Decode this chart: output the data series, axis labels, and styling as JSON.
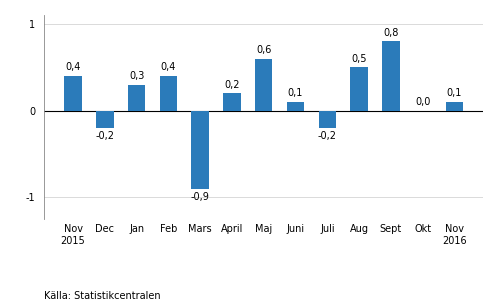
{
  "categories": [
    "Nov\n2015",
    "Dec",
    "Jan",
    "Feb",
    "Mars",
    "April",
    "Maj",
    "Juni",
    "Juli",
    "Aug",
    "Sept",
    "Okt",
    "Nov\n2016"
  ],
  "values": [
    0.4,
    -0.2,
    0.3,
    0.4,
    -0.9,
    0.2,
    0.6,
    0.1,
    -0.2,
    0.5,
    0.8,
    0.0,
    0.1
  ],
  "bar_color": "#2b7bba",
  "background_color": "#ffffff",
  "ylim": [
    -1.25,
    1.1
  ],
  "yticks": [
    -1,
    0,
    1
  ],
  "source_text": "Källa: Statistikcentralen",
  "label_fontsize": 7.0,
  "tick_fontsize": 7.0,
  "source_fontsize": 7.0,
  "bar_width": 0.55
}
